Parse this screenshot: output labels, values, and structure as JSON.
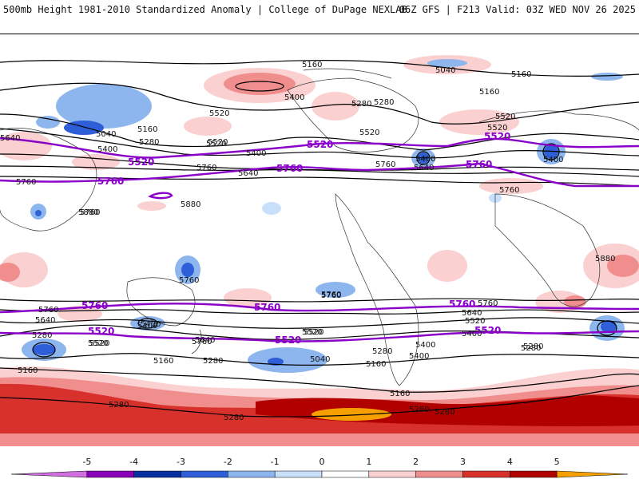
{
  "header": {
    "title_left": "500mb Height 1981-2010 Standardized Anomaly | College of DuPage NEXLAB",
    "title_right": "06Z GFS | F213 Valid: 03Z WED NOV 26 2025"
  },
  "map": {
    "contour_labels": [
      "5160",
      "5040",
      "5400",
      "5280",
      "5160",
      "5640",
      "5040",
      "5160",
      "5280",
      "5400",
      "5520",
      "5520",
      "5400",
      "5760",
      "5760",
      "5640",
      "5760",
      "5520",
      "5520",
      "5400",
      "5280",
      "5160",
      "5520",
      "5640",
      "5400",
      "5760",
      "5520",
      "5760",
      "5880",
      "5880",
      "5880",
      "5760",
      "5760",
      "5760",
      "5640",
      "5520",
      "5400",
      "5280",
      "5160",
      "5760",
      "5640",
      "5520",
      "5400",
      "5280",
      "5160",
      "5400",
      "5520",
      "5760",
      "5520",
      "5400",
      "5160",
      "5040",
      "5280",
      "5760",
      "5640",
      "5520",
      "5400",
      "5280",
      "5280",
      "5280",
      "5280",
      "5280",
      "5160",
      "5280"
    ],
    "highlight_labels": [
      "5520",
      "5760",
      "5520",
      "5760",
      "5520",
      "5760",
      "5760",
      "5520",
      "5760",
      "5520",
      "5760",
      "5520"
    ]
  },
  "colorbar": {
    "ticks": [
      "-5",
      "-4",
      "-3",
      "-2",
      "-1",
      "0",
      "1",
      "2",
      "3",
      "4",
      "5"
    ],
    "colors": [
      "#d070e0",
      "#8a00b8",
      "#0830a0",
      "#2e5fd8",
      "#8eb6ee",
      "#c8e0fa",
      "#ffffff",
      "#fbd0d0",
      "#f08e8e",
      "#d8302a",
      "#b00000",
      "#f5a000"
    ]
  }
}
